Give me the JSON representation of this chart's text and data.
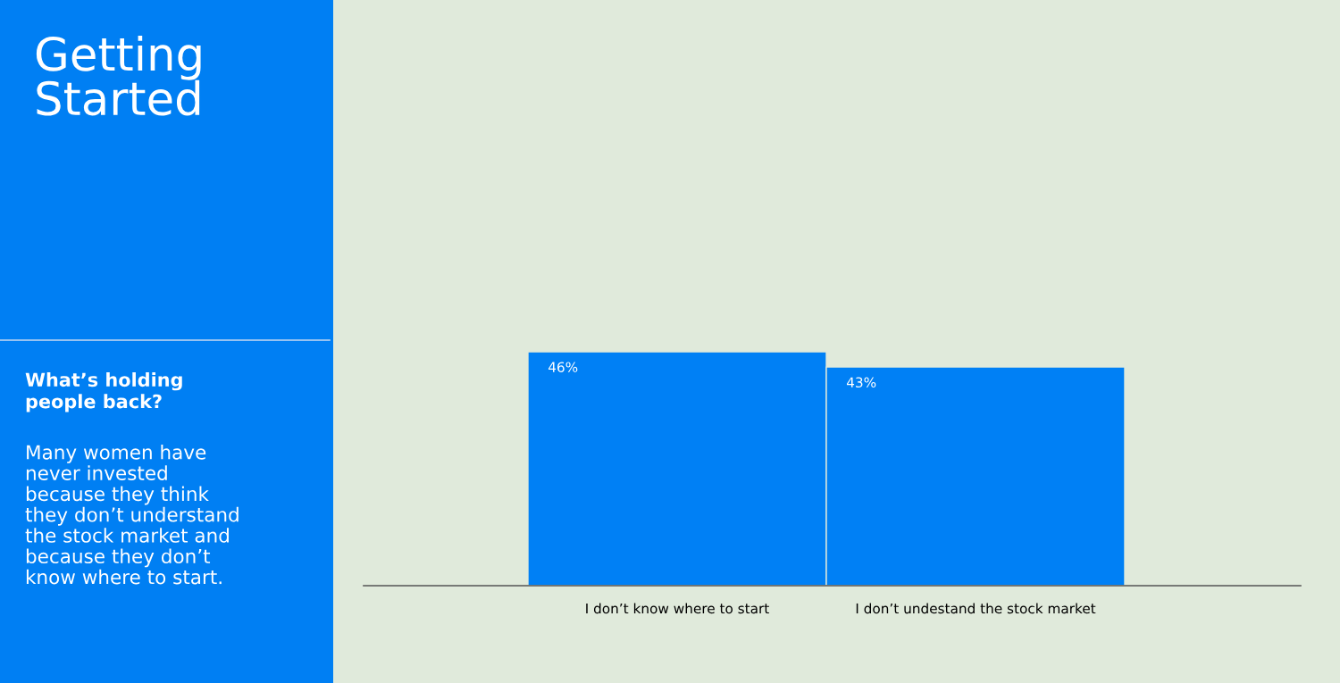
{
  "chart_data": {
    "type": "bar",
    "title": "Getting\nStarted",
    "subtitle": "What’s holding\npeople back?",
    "annotations": [
      "Many women have\nnever invested\nbecause they think\nthey don’t understand\nthe stock market and\nbecause they don’t\nknow where to start."
    ],
    "categories": [
      "I don’t know where to start",
      "I don’t undestand the stock market"
    ],
    "values": [
      46,
      43
    ],
    "color": "#0080f5",
    "value_labels": [
      "46%",
      "43%"
    ],
    "grid": false,
    "legend": false
  }
}
